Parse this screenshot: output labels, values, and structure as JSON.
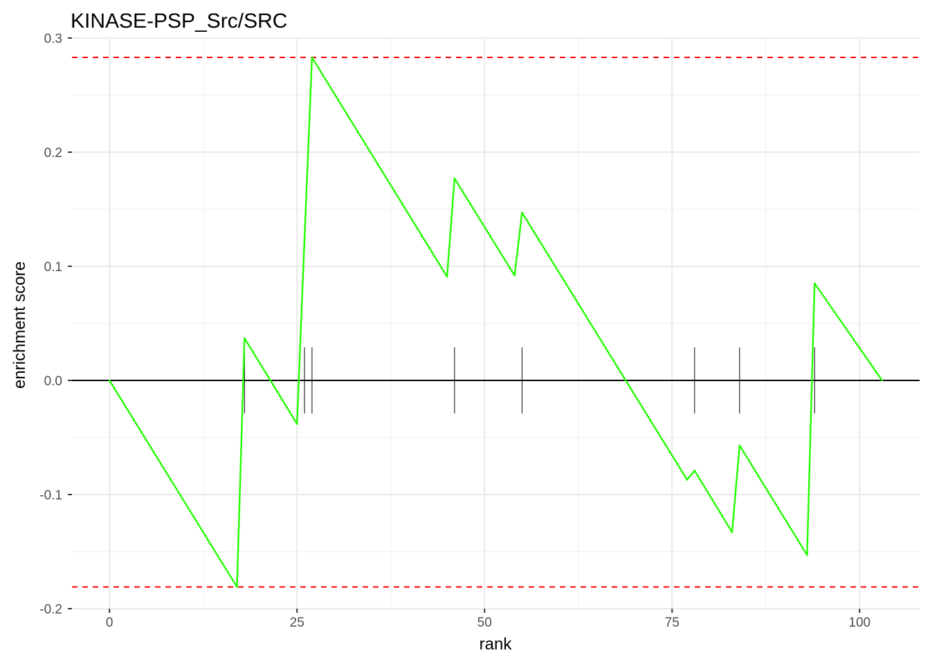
{
  "chart_data": {
    "type": "line",
    "title": "KINASE-PSP_Src/SRC",
    "xlabel": "rank",
    "ylabel": "enrichment score",
    "xlim": [
      -5,
      108
    ],
    "ylim": [
      -0.2,
      0.3
    ],
    "x_ticks": [
      0,
      25,
      50,
      75,
      100
    ],
    "x_tick_labels": [
      "0",
      "25",
      "50",
      "75",
      "100"
    ],
    "y_ticks": [
      -0.2,
      -0.1,
      0.0,
      0.1,
      0.2,
      0.3
    ],
    "y_tick_labels": [
      "-0.2",
      "-0.1",
      "0.0",
      "0.1",
      "0.2",
      "0.3"
    ],
    "grid": true,
    "series": [
      {
        "color": "#22ff00",
        "x": [
          0,
          17,
          18,
          25,
          26,
          27,
          45,
          46,
          54,
          55,
          77,
          78,
          83,
          84,
          93,
          94,
          103
        ],
        "y": [
          0.0,
          -0.181,
          0.037,
          -0.038,
          0.124,
          0.283,
          0.091,
          0.177,
          0.092,
          0.147,
          -0.087,
          -0.079,
          -0.133,
          -0.057,
          -0.153,
          0.085,
          0.0
        ]
      }
    ],
    "hit_ranks": [
      18,
      26,
      27,
      46,
      55,
      78,
      84,
      94
    ],
    "hit_half_height": 0.029,
    "thresholds": {
      "values": [
        0.283,
        -0.181
      ],
      "color": "#ff0000",
      "style": "dashed"
    },
    "zero_line": 0.0
  }
}
